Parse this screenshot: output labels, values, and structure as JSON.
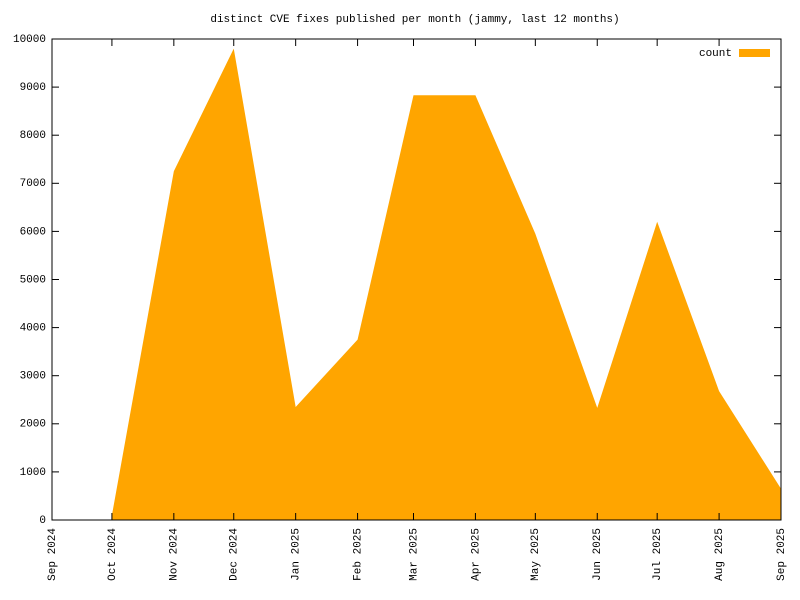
{
  "chart_data": {
    "type": "area",
    "title": "distinct CVE fixes published per month (jammy, last 12 months)",
    "x": [
      "Oct 2024",
      "Nov 2024",
      "Dec 2024",
      "Jan 2025",
      "Feb 2025",
      "Mar 2025",
      "Apr 2025",
      "May 2025",
      "Jun 2025",
      "Jul 2025",
      "Aug 2025",
      "Sep 2025"
    ],
    "series": [
      {
        "name": "count",
        "color": "#ffa500",
        "values": [
          100,
          7250,
          9800,
          2350,
          3750,
          8830,
          8830,
          5950,
          2330,
          6200,
          2680,
          650
        ]
      }
    ],
    "xlim": [
      "Sep 2024",
      "Sep 2025"
    ],
    "xticks": [
      "Sep 2024",
      "Oct 2024",
      "Nov 2024",
      "Dec 2024",
      "Jan 2025",
      "Feb 2025",
      "Mar 2025",
      "Apr 2025",
      "May 2025",
      "Jun 2025",
      "Jul 2025",
      "Aug 2025",
      "Sep 2025"
    ],
    "ylim": [
      0,
      10000
    ],
    "yticks": [
      0,
      1000,
      2000,
      3000,
      4000,
      5000,
      6000,
      7000,
      8000,
      9000,
      10000
    ],
    "legend": "upper right"
  }
}
